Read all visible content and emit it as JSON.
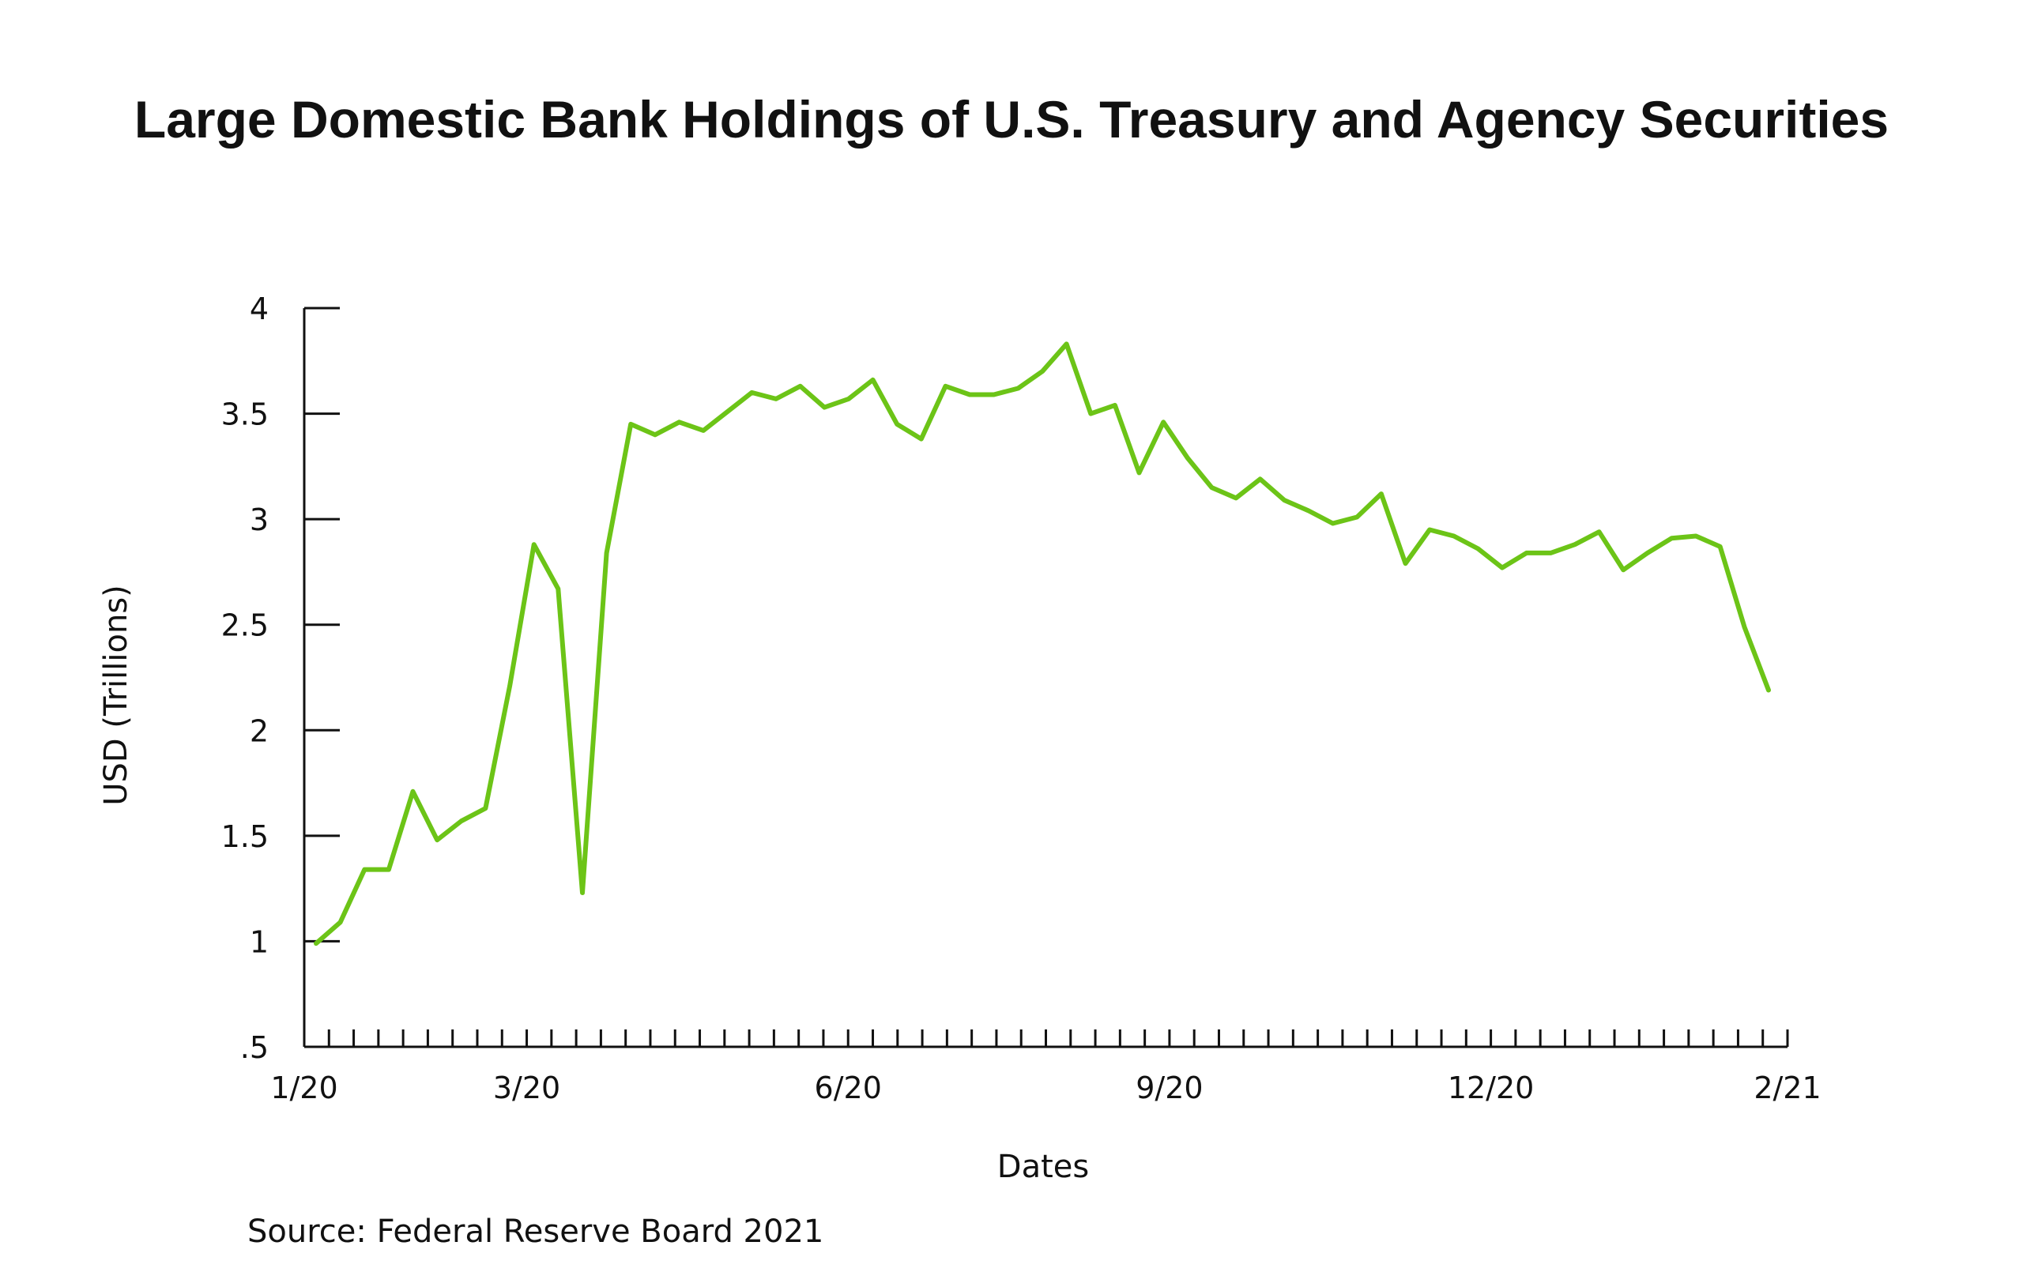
{
  "chart_data": {
    "type": "line",
    "title": "Large Domestic Bank Holdings of U.S. Treasury and Agency Securities",
    "xlabel": "Dates",
    "ylabel": "USD (Trillions)",
    "source": "Source: Federal Reserve Board 2021",
    "ylim": [
      0.5,
      4
    ],
    "yticks": [
      {
        "value": 4,
        "label": "4"
      },
      {
        "value": 3.5,
        "label": "3.5"
      },
      {
        "value": 3,
        "label": "3"
      },
      {
        "value": 2.5,
        "label": "2.5"
      },
      {
        "value": 2,
        "label": "2"
      },
      {
        "value": 1.5,
        "label": "1.5"
      },
      {
        "value": 1,
        "label": "1"
      },
      {
        "value": 0.5,
        "label": ".5"
      }
    ],
    "xlim": [
      0,
      60
    ],
    "xticks_minor": 60,
    "xtick_labels": [
      {
        "value": 0,
        "label": "1/20"
      },
      {
        "value": 9,
        "label": "3/20"
      },
      {
        "value": 22,
        "label": "6/20"
      },
      {
        "value": 35,
        "label": "9/20"
      },
      {
        "value": 48,
        "label": "12/20"
      },
      {
        "value": 60,
        "label": "2/21"
      }
    ],
    "grid": false,
    "series": [
      {
        "color": "#6cc417",
        "values": [
          0.99,
          1.09,
          1.34,
          1.34,
          1.71,
          1.48,
          1.57,
          1.63,
          2.21,
          2.88,
          2.67,
          1.23,
          2.84,
          3.45,
          3.4,
          3.46,
          3.42,
          3.51,
          3.6,
          3.57,
          3.63,
          3.53,
          3.57,
          3.66,
          3.45,
          3.38,
          3.63,
          3.59,
          3.59,
          3.62,
          3.7,
          3.83,
          3.5,
          3.54,
          3.22,
          3.46,
          3.29,
          3.15,
          3.1,
          3.19,
          3.09,
          3.04,
          2.98,
          3.01,
          3.12,
          2.79,
          2.95,
          2.92,
          2.86,
          2.77,
          2.84,
          2.84,
          2.88,
          2.94,
          2.76,
          2.84,
          2.91,
          2.92,
          2.87,
          2.49,
          2.19
        ]
      }
    ]
  }
}
